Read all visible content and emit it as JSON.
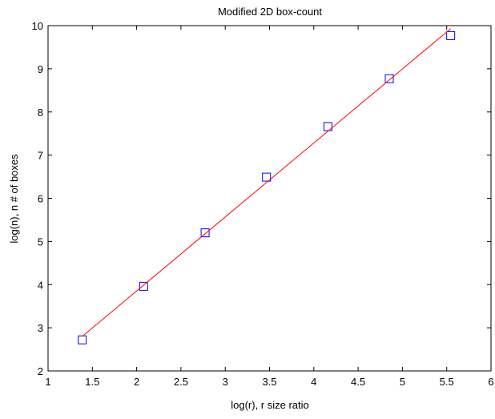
{
  "chart_data": {
    "type": "scatter",
    "title": "Modified 2D box-count",
    "xlabel": "log(r), r size ratio",
    "ylabel": "log(n), n # of boxes",
    "xlim": [
      1,
      6
    ],
    "ylim": [
      2,
      10
    ],
    "xticks": [
      1,
      1.5,
      2,
      2.5,
      3,
      3.5,
      4,
      4.5,
      5,
      5.5,
      6
    ],
    "yticks": [
      2,
      3,
      4,
      5,
      6,
      7,
      8,
      9,
      10
    ],
    "xtick_labels": [
      "1",
      "1.5",
      "2",
      "2.5",
      "3",
      "3.5",
      "4",
      "4.5",
      "5",
      "5.5",
      "6"
    ],
    "ytick_labels": [
      "2",
      "3",
      "4",
      "5",
      "6",
      "7",
      "8",
      "9",
      "10"
    ],
    "grid": false,
    "series": [
      {
        "kind": "markers",
        "marker": "square",
        "color": "#0000ff",
        "x": [
          1.386,
          2.079,
          2.773,
          3.466,
          4.159,
          4.852,
          5.545
        ],
        "y": [
          2.72,
          3.96,
          5.2,
          6.49,
          7.66,
          8.77,
          9.77
        ]
      },
      {
        "kind": "line",
        "color": "#ff0000",
        "x": [
          1.386,
          5.545
        ],
        "y": [
          2.8,
          9.93
        ]
      }
    ]
  }
}
